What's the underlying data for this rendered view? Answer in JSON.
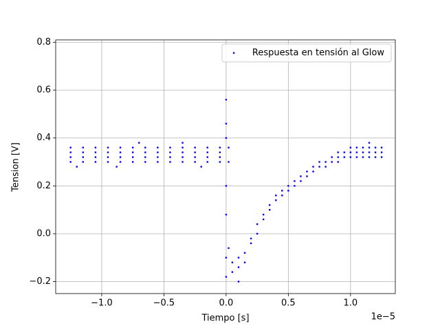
{
  "chart_data": {
    "type": "scatter",
    "xlabel": "Tiempo [s]",
    "ylabel": "Tension [V]",
    "x_offset_label": "1e−5",
    "xlim": [
      -1.37,
      1.36
    ],
    "ylim": [
      -0.25,
      0.81
    ],
    "xticks": [
      {
        "value": -1,
        "label": "−1.0"
      },
      {
        "value": -0.5,
        "label": "−0.5"
      },
      {
        "value": 0,
        "label": "0.0"
      },
      0.5,
      {
        "value": 1,
        "label": "1.0"
      }
    ],
    "yticks": [
      {
        "value": -0.2,
        "label": "−0.2"
      },
      {
        "value": 0,
        "label": "0.0"
      },
      0.2,
      0.4,
      0.6,
      0.8
    ],
    "grid": true,
    "legend": "upper right",
    "x": [
      -1.25,
      -1.25,
      -1.25,
      -1.25,
      -1.15,
      -1.15,
      -1.15,
      -1.15,
      -1.05,
      -1.05,
      -1.05,
      -1.05,
      -0.95,
      -0.95,
      -0.95,
      -0.95,
      -0.85,
      -0.85,
      -0.85,
      -0.85,
      -0.75,
      -0.75,
      -0.75,
      -0.75,
      -0.65,
      -0.65,
      -0.65,
      -0.65,
      -0.55,
      -0.55,
      -0.55,
      -0.55,
      -0.45,
      -0.45,
      -0.45,
      -0.45,
      -0.35,
      -0.35,
      -0.35,
      -0.35,
      -0.25,
      -0.25,
      -0.25,
      -0.25,
      -0.15,
      -0.15,
      -0.15,
      -0.15,
      -0.05,
      -0.05,
      -0.05,
      -0.05,
      -1.2,
      -0.88,
      -0.7,
      -0.35,
      -0.2,
      0,
      0,
      0,
      0,
      0,
      0,
      0,
      0.02,
      0.02,
      0.02,
      0.05,
      0.05,
      0.1,
      0.1,
      0.1,
      0.15,
      0.15,
      0.2,
      0.2,
      0.25,
      0.25,
      0.3,
      0.3,
      0.35,
      0.35,
      0.4,
      0.4,
      0.45,
      0.45,
      0.5,
      0.5,
      0.55,
      0.55,
      0.6,
      0.6,
      0.65,
      0.65,
      0.7,
      0.7,
      0.75,
      0.75,
      0.8,
      0.8,
      0.85,
      0.85,
      0.9,
      0.9,
      0.9,
      0.95,
      0.95,
      1.0,
      1.0,
      1.0,
      1.05,
      1.05,
      1.05,
      1.1,
      1.1,
      1.1,
      1.15,
      1.15,
      1.15,
      1.15,
      1.2,
      1.2,
      1.2,
      1.25,
      1.25,
      1.25
    ],
    "series": [
      {
        "name": "Respuesta en tensión al Glow",
        "color": "#0000ff",
        "values": [
          0.3,
          0.32,
          0.34,
          0.36,
          0.3,
          0.32,
          0.34,
          0.36,
          0.3,
          0.32,
          0.34,
          0.36,
          0.3,
          0.32,
          0.34,
          0.36,
          0.3,
          0.32,
          0.34,
          0.36,
          0.3,
          0.32,
          0.34,
          0.36,
          0.3,
          0.32,
          0.34,
          0.36,
          0.3,
          0.32,
          0.34,
          0.36,
          0.3,
          0.32,
          0.34,
          0.36,
          0.3,
          0.32,
          0.34,
          0.36,
          0.3,
          0.32,
          0.34,
          0.36,
          0.3,
          0.32,
          0.34,
          0.36,
          0.3,
          0.32,
          0.34,
          0.36,
          0.28,
          0.28,
          0.38,
          0.38,
          0.28,
          0.56,
          0.46,
          0.4,
          0.2,
          0.08,
          -0.1,
          -0.18,
          0.36,
          0.3,
          -0.06,
          -0.12,
          -0.16,
          -0.1,
          -0.14,
          -0.2,
          -0.08,
          -0.12,
          -0.04,
          -0.02,
          0.0,
          0.04,
          0.06,
          0.08,
          0.1,
          0.12,
          0.14,
          0.16,
          0.16,
          0.18,
          0.18,
          0.2,
          0.2,
          0.22,
          0.22,
          0.24,
          0.24,
          0.26,
          0.26,
          0.28,
          0.28,
          0.3,
          0.28,
          0.3,
          0.3,
          0.32,
          0.3,
          0.32,
          0.34,
          0.32,
          0.34,
          0.32,
          0.34,
          0.36,
          0.32,
          0.34,
          0.36,
          0.32,
          0.34,
          0.36,
          0.32,
          0.34,
          0.36,
          0.38,
          0.32,
          0.34,
          0.36,
          0.32,
          0.34,
          0.36
        ]
      }
    ]
  }
}
